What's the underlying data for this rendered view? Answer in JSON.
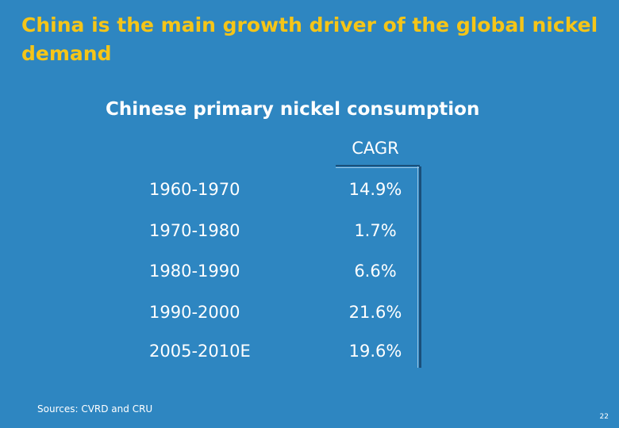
{
  "slide": {
    "title": "China is the main growth driver of the global nickel demand",
    "subtitle": "Chinese primary nickel consumption",
    "sources": "Sources: CVRD and CRU",
    "page_number": "22"
  },
  "table": {
    "header": "CAGR",
    "rows": [
      {
        "period": "1960-1970",
        "cagr": "14.9%"
      },
      {
        "period": "1970-1980",
        "cagr": "1.7%"
      },
      {
        "period": "1980-1990",
        "cagr": "6.6%"
      },
      {
        "period": "1990-2000",
        "cagr": "21.6%"
      },
      {
        "period": "2005-2010E",
        "cagr": "19.6%"
      }
    ]
  },
  "colors": {
    "background": "#2e86c1",
    "title": "#f5c518",
    "text": "#ffffff",
    "rule": "#1a4f7a"
  }
}
